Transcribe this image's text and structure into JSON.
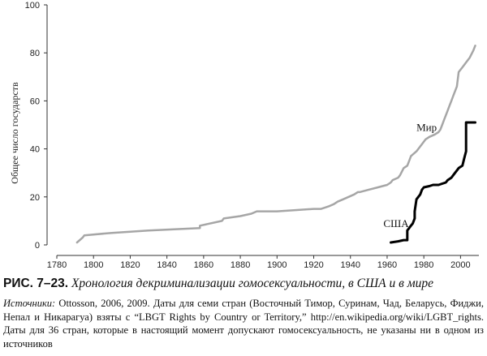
{
  "chart_data": {
    "type": "line",
    "xlabel": "",
    "ylabel": "Общее число государств",
    "xlim": [
      1780,
      2010
    ],
    "ylim": [
      0,
      100
    ],
    "xticks": [
      "1780",
      "1800",
      "1820",
      "1840",
      "1860",
      "1880",
      "1900",
      "1920",
      "1940",
      "1960",
      "1980",
      "2000"
    ],
    "yticks": [
      "0",
      "20",
      "40",
      "60",
      "80",
      "100"
    ],
    "grid": false,
    "legend": "none",
    "series": [
      {
        "name": "Мир",
        "color": "#a6a6a6",
        "x": [
          1791,
          1794,
          1795,
          1810,
          1830,
          1858,
          1858,
          1870,
          1871,
          1880,
          1886,
          1889,
          1890,
          1900,
          1910,
          1920,
          1924,
          1928,
          1931,
          1933,
          1936,
          1939,
          1942,
          1944,
          1945,
          1950,
          1955,
          1960,
          1962,
          1963,
          1966,
          1967,
          1969,
          1971,
          1972,
          1973,
          1976,
          1977,
          1979,
          1981,
          1983,
          1986,
          1988,
          1989,
          1990,
          1991,
          1992,
          1993,
          1994,
          1995,
          1996,
          1997,
          1998,
          1999,
          2001,
          2003,
          2005,
          2007,
          2008
        ],
        "y": [
          1,
          3,
          4,
          5,
          6,
          7,
          8,
          10,
          11,
          12,
          13,
          14,
          14,
          14,
          14.5,
          15,
          15,
          16,
          17,
          18,
          19,
          20,
          21,
          22,
          22,
          23,
          24,
          25,
          26,
          27,
          28,
          29,
          32,
          33,
          35,
          37,
          39,
          40,
          42,
          44,
          45,
          46,
          47,
          48,
          50,
          52,
          54,
          56,
          58,
          60,
          62,
          64,
          66,
          72,
          74,
          76,
          78,
          81,
          83
        ]
      },
      {
        "name": "США",
        "color": "#000000",
        "x": [
          1962,
          1966,
          1969,
          1971,
          1971,
          1972,
          1973,
          1974,
          1975,
          1975,
          1976,
          1978,
          1979,
          1980,
          1983,
          1985,
          1988,
          1990,
          1992,
          1993,
          1995,
          1996,
          1997,
          1998,
          1999,
          2001,
          2002,
          2003,
          2003,
          2008
        ],
        "y": [
          1,
          1.5,
          2,
          2,
          6,
          7,
          8,
          9,
          11,
          14,
          19,
          21,
          23,
          24,
          24.5,
          25,
          25,
          25.5,
          26,
          27,
          28,
          29,
          30,
          31,
          32,
          33,
          36,
          39,
          51,
          51
        ]
      }
    ]
  },
  "series_labels": {
    "world": "Мир",
    "usa": "США"
  },
  "caption": {
    "figure_number": "РИС. 7–23.",
    "figure_title": "Хронология декриминализации гомосексуальности, в США и в мире",
    "sources_label": "Источники:",
    "sources_text": "Ottosson, 2006, 2009. Даты для семи стран (Восточный Тимор, Суринам, Чад, Беларусь, Фиджи, Непал и Никарагуа) взяты с “LBGT Rights by Country or Territory,” http://en.wikipedia.org/wiki/LGBT_rights. Даты для 36 стран, которые в настоящий момент допускают гомосексуальность, не указаны ни в одном из источников"
  }
}
